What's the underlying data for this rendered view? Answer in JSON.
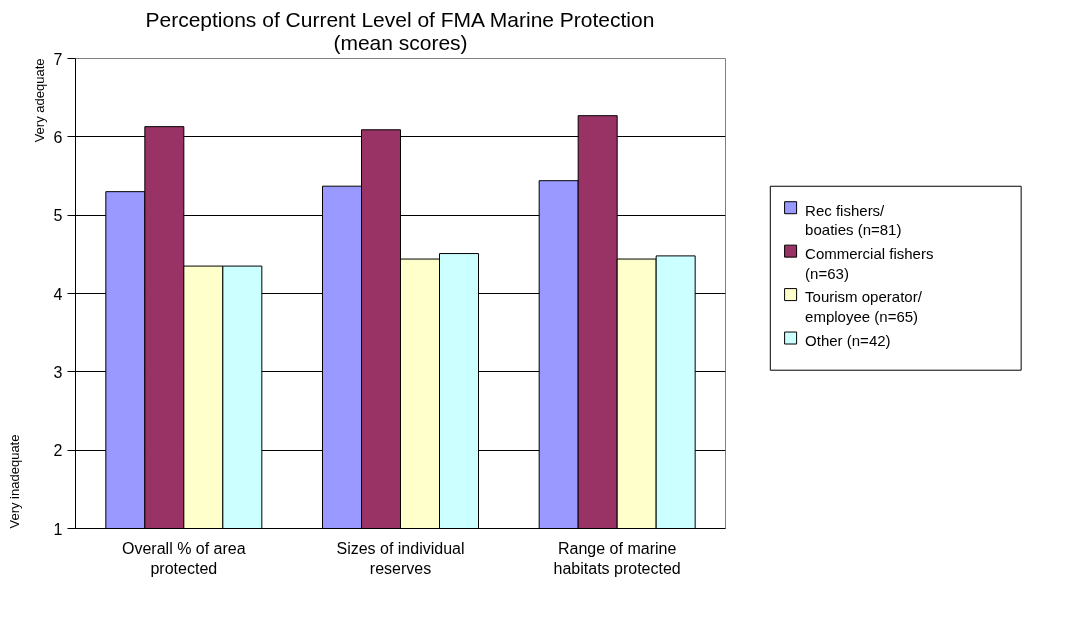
{
  "chart_data": {
    "type": "bar",
    "title": "Perceptions of Current Level of FMA Marine Protection (mean scores)",
    "categories": [
      "Overall % of area protected",
      "Sizes of individual reserves",
      "Range of marine habitats protected"
    ],
    "series": [
      {
        "name": "Rec fishers/ boaties (n=81)",
        "color": "#9999ff",
        "values": [
          5.3,
          5.37,
          5.44
        ]
      },
      {
        "name": "Commercial fishers (n=63)",
        "color": "#993366",
        "values": [
          6.13,
          6.09,
          6.27
        ]
      },
      {
        "name": "Tourism operator/ employee (n=65)",
        "color": "#ffffcc",
        "values": [
          4.35,
          4.44,
          4.44
        ]
      },
      {
        "name": "Other (n=42)",
        "color": "#ccffff",
        "values": [
          4.35,
          4.51,
          4.48
        ]
      }
    ],
    "ylim": [
      1,
      7
    ],
    "yticks": [
      1,
      2,
      3,
      4,
      5,
      6,
      7
    ],
    "grid": "y",
    "legend": "right",
    "annotations": [
      "Very adequate",
      "Very inadequate"
    ]
  }
}
